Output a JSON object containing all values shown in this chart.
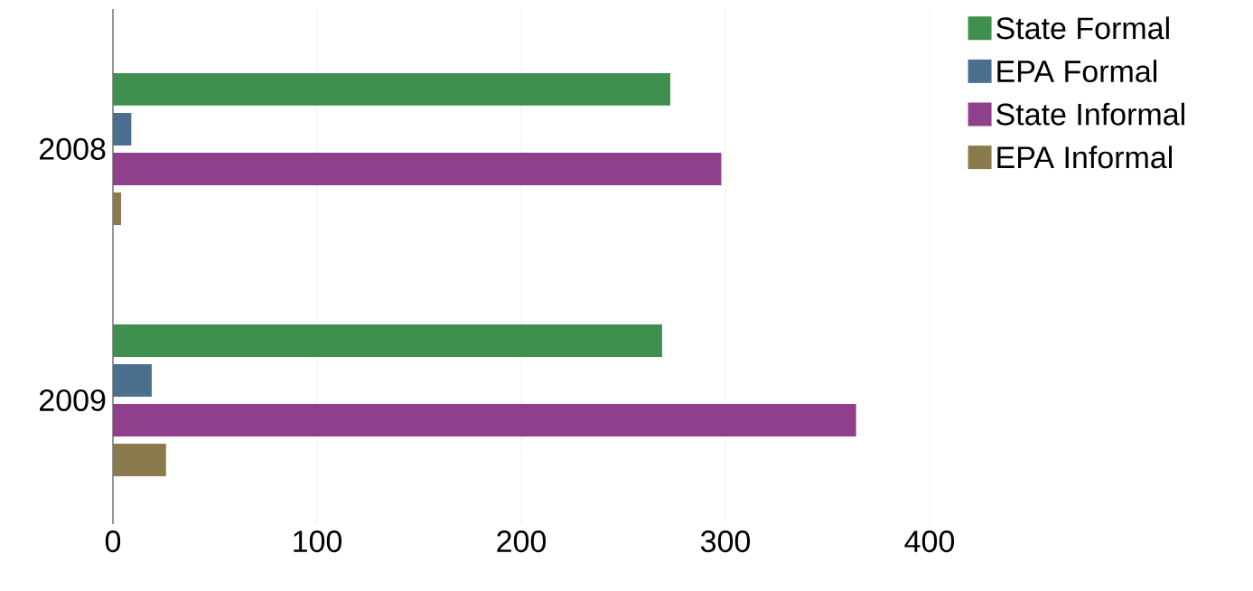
{
  "chart_data": {
    "type": "bar",
    "orientation": "horizontal",
    "categories": [
      "2008",
      "2009"
    ],
    "series": [
      {
        "name": "State Formal",
        "color": "#3f8f4f",
        "values": [
          273,
          269
        ]
      },
      {
        "name": "EPA Formal",
        "color": "#4a6f8f",
        "values": [
          9,
          19
        ]
      },
      {
        "name": "State Informal",
        "color": "#8f3f8c",
        "values": [
          298,
          364
        ]
      },
      {
        "name": "EPA Informal",
        "color": "#8a7a4c",
        "values": [
          4,
          26
        ]
      }
    ],
    "xlim": [
      0,
      400
    ],
    "xticks": [
      0,
      100,
      200,
      300,
      400
    ],
    "grid": "x",
    "legend": "top right"
  }
}
